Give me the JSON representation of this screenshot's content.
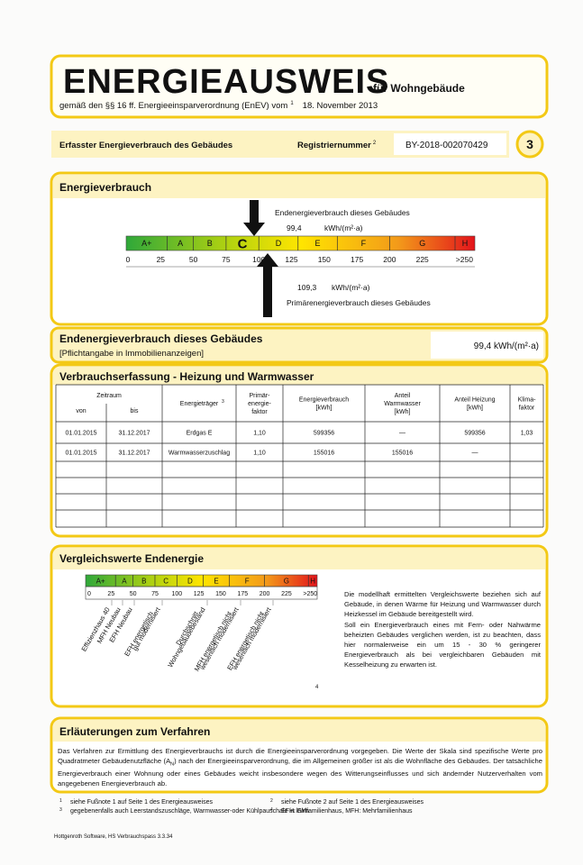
{
  "header": {
    "title": "ENERGIEAUSWEIS",
    "subtitle": "für Wohngebäude",
    "regulation": "gemäß den §§ 16 ff. Energieeinsparverordnung (EnEV) vom",
    "regulation_footnote": "1",
    "regulation_date": "18. November 2013"
  },
  "registration": {
    "label": "Erfasster Energieverbrauch des Gebäudes",
    "number_label": "Registriernummer",
    "number_footnote": "2",
    "number": "BY-2018-002070429",
    "page": "3"
  },
  "energy": {
    "heading": "Energieverbrauch",
    "classes": [
      "A+",
      "A",
      "B",
      "C",
      "D",
      "E",
      "F",
      "G",
      "H"
    ],
    "rating": "C",
    "scale": [
      "0",
      "25",
      "50",
      "75",
      "100",
      "125",
      "150",
      "175",
      "200",
      "225",
      ">250"
    ],
    "end_label": "Endenergieverbrauch dieses Gebäudes",
    "end_value": "99,4",
    "end_unit": "kWh/(m²·a)",
    "primary_value": "109,3",
    "primary_unit": "kWh/(m²·a)",
    "primary_label": "Primärenergieverbrauch dieses Gebäudes"
  },
  "summary": {
    "title": "Endenergieverbrauch dieses Gebäudes",
    "note": "[Pflichtangabe in Immobilienanzeigen]",
    "value": "99,4 kWh/(m²·a)"
  },
  "consumption": {
    "heading": "Verbrauchserfassung - Heizung und Warmwasser",
    "period": "Zeitraum",
    "columns": [
      [
        "von"
      ],
      [
        "bis"
      ],
      [
        "Energieträger"
      ],
      [
        "Primär-",
        "energie-",
        "faktor"
      ],
      [
        "Energieverbrauch",
        "[kWh]"
      ],
      [
        "Anteil",
        "Warmwasser",
        "[kWh]"
      ],
      [
        "Anteil Heizung",
        "[kWh]"
      ],
      [
        "Klima-",
        "faktor"
      ]
    ],
    "carrier_footnote": "3",
    "rows": [
      [
        "01.01.2015",
        "31.12.2017",
        "Erdgas E",
        "1,10",
        "599356",
        "—",
        "599356",
        "1,03"
      ],
      [
        "01.01.2015",
        "31.12.2017",
        "Warmwasserzuschlag",
        "1,10",
        "155016",
        "155016",
        "—",
        null
      ]
    ]
  },
  "comparison": {
    "heading": "Vergleichswerte Endenergie",
    "classes": [
      "A+",
      "A",
      "B",
      "C",
      "D",
      "E",
      "F",
      "G",
      "H"
    ],
    "scale": [
      "0",
      "25",
      "50",
      "75",
      "100",
      "125",
      "150",
      "175",
      "200",
      "225",
      ">250"
    ],
    "references": [
      [
        "Effizienzhaus 40"
      ],
      [
        "MFH Neubau"
      ],
      [
        "EFH Neubau"
      ],
      [
        "EFH energetisch",
        "gut modernisiert"
      ],
      [
        "Durchschnitt",
        "Wohngebäudebestand"
      ],
      [
        "MFH energetisch nicht",
        "wesentlich modernisiert"
      ],
      [
        "EFH energetisch nicht",
        "wesentlich modernisiert"
      ]
    ],
    "footnote": "4",
    "text": [
      "Die modellhaft ermittelten Vergleichswerte beziehen sich auf Gebäude, in denen Wärme für Heizung und Warmwasser durch Heizkessel im Gebäude bereitgestellt wird.",
      "Soll ein Energieverbrauch eines mit Fern- oder Nahwärme beheizten Gebäudes verglichen werden, ist zu beachten, dass hier normalerweise ein um 15 - 30 % geringerer Energieverbrauch als bei vergleichbaren Gebäuden mit Kesselheizung zu erwarten ist."
    ]
  },
  "explanation": {
    "heading": "Erläuterungen zum Verfahren",
    "text_before": "Das Verfahren zur Ermittlung des Energieverbrauchs ist durch die Energieeinsparverordnung vorgegeben. Die Werte der Skala sind spezifische Werte pro Quadratmeter Gebäudenutzfläche (A",
    "subscript": "N",
    "text_after": ") nach der Energieeinsparverordnung, die im Allgemeinen größer ist als die Wohnfläche des Gebäudes. Der tatsächliche Energieverbrauch einer Wohnung oder eines Gebäudes weicht insbesondere wegen des Witterungseinflusses und sich ändernder Nutzerverhalten vom angegebenen Energieverbrauch ab."
  },
  "footnotes": [
    {
      "mark": "1",
      "text": "siehe Fußnote 1 auf Seite 1 des Energieausweises"
    },
    {
      "mark": "2",
      "text": "siehe Fußnote 2 auf Seite 1 des Energieausweises"
    },
    {
      "mark": "3",
      "text": "gegebenenfalls auch Leerstandszuschläge, Warmwasser-oder Kühlpauschale in kWh"
    },
    {
      "mark": "4",
      "text": "EFH: Einfamilienhaus, MFH: Mehrfamilienhaus"
    }
  ],
  "footer": "Hottgenroth Software, HS Verbrauchspass 3.3.34"
}
